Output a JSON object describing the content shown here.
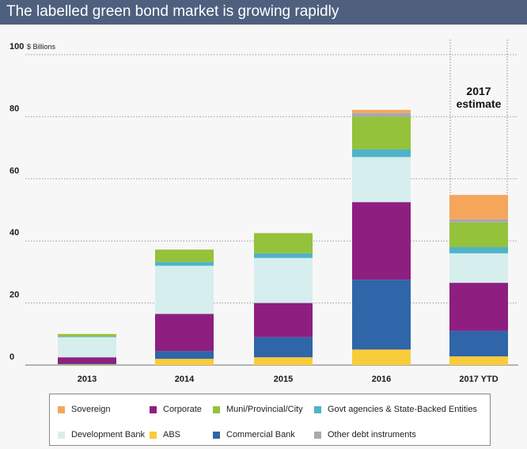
{
  "title": "The labelled green bond market is growing rapidly",
  "chart_data": {
    "type": "bar",
    "stacked": true,
    "unit_label": "$ Billions",
    "categories": [
      "2013",
      "2014",
      "2015",
      "2016",
      "2017 YTD"
    ],
    "ylim": [
      0,
      100
    ],
    "yticks": [
      0,
      20,
      40,
      60,
      80,
      100
    ],
    "grid": "dotted horizontal",
    "annotation": "2017 estimate",
    "series": [
      {
        "name": "ABS",
        "color": "#f9cc3a",
        "values": [
          0.2,
          2.0,
          2.5,
          5.0,
          2.8
        ]
      },
      {
        "name": "Commercial Bank",
        "color": "#2f66a9",
        "values": [
          0.3,
          2.5,
          6.5,
          22.5,
          8.2
        ]
      },
      {
        "name": "Corporate",
        "color": "#8e1f80",
        "values": [
          2.0,
          12.0,
          11.0,
          25.0,
          15.5
        ]
      },
      {
        "name": "Development Bank",
        "color": "#d7eeee",
        "values": [
          6.5,
          15.5,
          14.5,
          14.5,
          9.5
        ]
      },
      {
        "name": "Govt agencies & State-Backed Entities",
        "color": "#4fb3c9",
        "values": [
          0.2,
          1.2,
          1.5,
          2.5,
          2.0
        ]
      },
      {
        "name": "Muni/Provincial/City",
        "color": "#94c23a",
        "values": [
          0.8,
          4.0,
          6.5,
          10.5,
          8.0
        ]
      },
      {
        "name": "Other debt instruments",
        "color": "#a9a7b0",
        "values": [
          0,
          0,
          0,
          1.2,
          1.0
        ]
      },
      {
        "name": "Sovereign",
        "color": "#f5a65b",
        "values": [
          0,
          0,
          0,
          1.0,
          7.8
        ]
      }
    ]
  },
  "legend": {
    "row1": [
      {
        "label": "Sovereign",
        "color": "#f5a65b"
      },
      {
        "label": "Corporate",
        "color": "#8e1f80"
      },
      {
        "label": "Muni/Provincial/City",
        "color": "#94c23a"
      },
      {
        "label": "Govt agencies & State-Backed Entities",
        "color": "#4fb3c9"
      }
    ],
    "row2": [
      {
        "label": "Development Bank",
        "color": "#d7eeee"
      },
      {
        "label": "ABS",
        "color": "#f9cc3a"
      },
      {
        "label": "Commercial Bank",
        "color": "#2f66a9"
      },
      {
        "label": "Other debt instruments",
        "color": "#a9a7b0"
      }
    ]
  }
}
